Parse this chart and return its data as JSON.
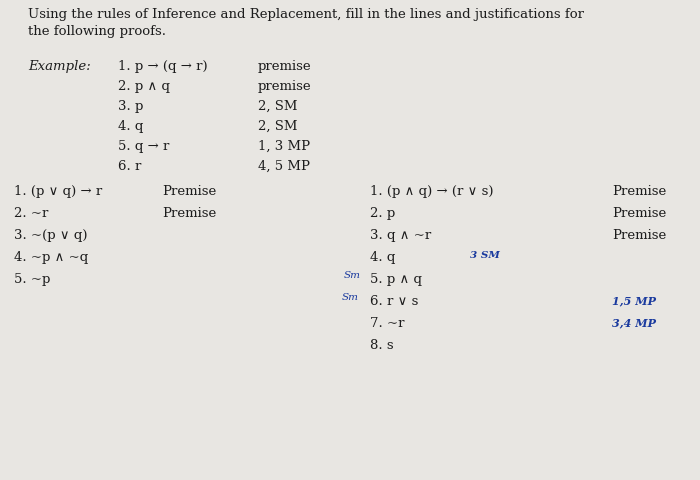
{
  "bg_color": "#e8e6e2",
  "title_line1": "Using the rules of Inference and Replacement, fill in the lines and justifications for",
  "title_line2": "the following proofs.",
  "example_label": "Example:",
  "example_steps": [
    [
      "1. p → (q → r)",
      "premise"
    ],
    [
      "2. p ∧ q",
      "premise"
    ],
    [
      "3. p",
      "2, SM"
    ],
    [
      "4. q",
      "2, SM"
    ],
    [
      "5. q → r",
      "1, 3 MP"
    ],
    [
      "6. r",
      "4, 5 MP"
    ]
  ],
  "proof1_steps": [
    [
      "1. (p ∨ q) → r",
      "Premise"
    ],
    [
      "2. ~r",
      "Premise"
    ],
    [
      "3. ~(p ∨ q)",
      ""
    ],
    [
      "4. ~p ∧ ~q",
      ""
    ],
    [
      "5. ~p",
      ""
    ]
  ],
  "proof2_steps": [
    [
      "1. (p ∧ q) → (r ∨ s)",
      "Premise"
    ],
    [
      "2. p",
      "Premise"
    ],
    [
      "3. q ∧ ~r",
      "Premise"
    ],
    [
      "4. q",
      ""
    ],
    [
      "5. p ∧ q",
      ""
    ],
    [
      "6. r ∨ s",
      ""
    ],
    [
      "7. ~r",
      ""
    ],
    [
      "8. s",
      ""
    ]
  ],
  "text_color": "#1c1c1c",
  "blue_color": "#1a3a9e",
  "font_main": 9.5,
  "font_title": 9.5,
  "font_annot": 7.5
}
